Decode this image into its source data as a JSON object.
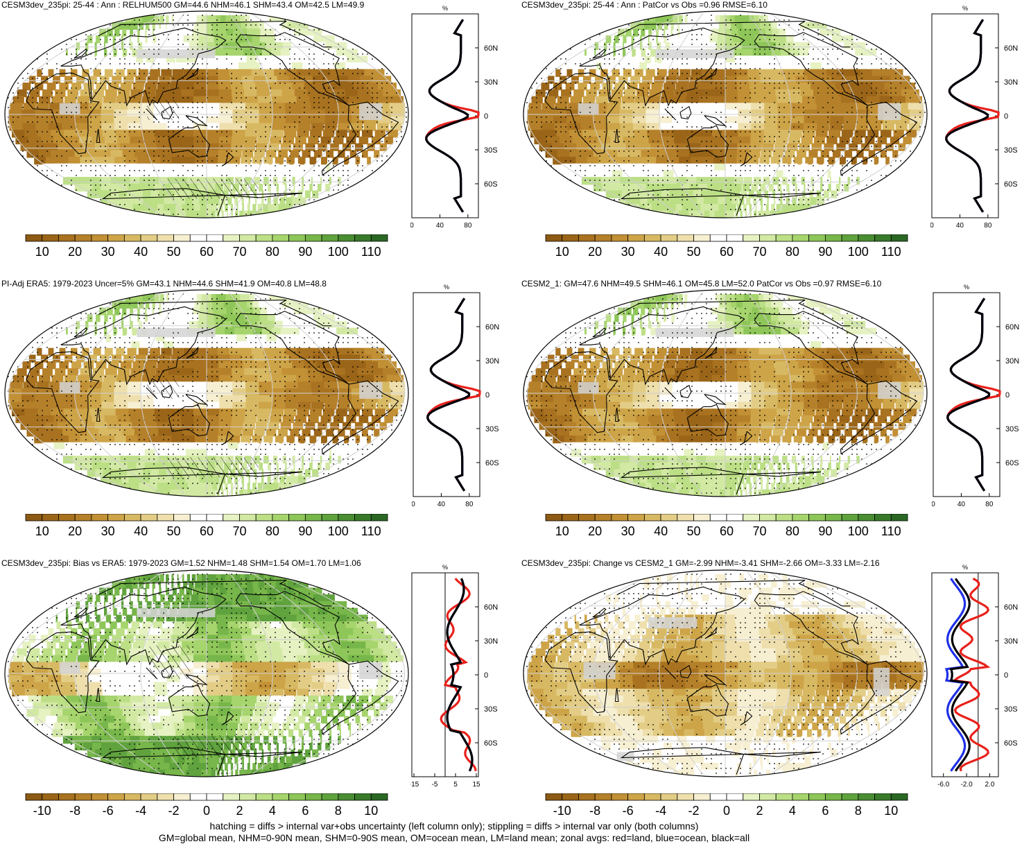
{
  "panels": [
    {
      "title": "CESM3dev_235pi: 25-44 : Ann : RELHUM500 GM=44.6 NHM=46.1 SHM=43.4 OM=42.5 LM=49.9",
      "field": "abs",
      "hatch": true,
      "zonal_axis": {
        "ticks": [
          "0",
          "40",
          "80"
        ],
        "tick_values": [
          0,
          40,
          80
        ],
        "xlim": [
          0,
          95
        ],
        "unit": "%",
        "zero_line": false
      },
      "lat_labels": [
        "60N",
        "30N",
        "0",
        "30S",
        "60S"
      ],
      "colorbar": {
        "labels": [
          "10",
          "20",
          "30",
          "40",
          "50",
          "60",
          "70",
          "80",
          "90",
          "100",
          "110"
        ]
      }
    },
    {
      "title": "CESM3dev_235pi: 25-44 : Ann : PatCor vs Obs =0.96 RMSE=6.10",
      "field": "abs",
      "hatch": false,
      "zonal_axis": {
        "ticks": [
          "0",
          "40",
          "80"
        ],
        "tick_values": [
          0,
          40,
          80
        ],
        "xlim": [
          0,
          95
        ],
        "unit": "%",
        "zero_line": false
      },
      "lat_labels": [
        "60N",
        "30N",
        "0",
        "30S",
        "60S"
      ],
      "colorbar": {
        "labels": [
          "10",
          "20",
          "30",
          "40",
          "50",
          "60",
          "70",
          "80",
          "90",
          "100",
          "110"
        ]
      }
    },
    {
      "title": "PI-Adj ERA5: 1979-2023 Uncer=5% GM=43.1 NHM=44.6 SHM=41.9 OM=40.8 LM=48.8",
      "field": "abs",
      "hatch": true,
      "zonal_axis": {
        "ticks": [
          "0",
          "40",
          "80"
        ],
        "tick_values": [
          0,
          40,
          80
        ],
        "xlim": [
          0,
          95
        ],
        "unit": "%",
        "zero_line": false
      },
      "lat_labels": [
        "60N",
        "30N",
        "0",
        "30S",
        "60S"
      ],
      "colorbar": {
        "labels": [
          "10",
          "20",
          "30",
          "40",
          "50",
          "60",
          "70",
          "80",
          "90",
          "100",
          "110"
        ]
      }
    },
    {
      "title": "CESM2_1: GM=47.6 NHM=49.5 SHM=46.1 OM=45.8 LM=52.0 PatCor vs Obs =0.97 RMSE=6.10",
      "field": "abs",
      "hatch": false,
      "zonal_axis": {
        "ticks": [
          "0",
          "40",
          "80"
        ],
        "tick_values": [
          0,
          40,
          80
        ],
        "xlim": [
          0,
          95
        ],
        "unit": "%",
        "zero_line": false
      },
      "lat_labels": [
        "60N",
        "30N",
        "0",
        "30S",
        "60S"
      ],
      "colorbar": {
        "labels": [
          "10",
          "20",
          "30",
          "40",
          "50",
          "60",
          "70",
          "80",
          "90",
          "100",
          "110"
        ]
      }
    },
    {
      "title": "CESM3dev_235pi: Bias vs ERA5: 1979-2023 GM=1.52 NHM=1.48 SHM=1.54 OM=1.70 LM=1.06",
      "field": "bias",
      "hatch": true,
      "zonal_axis": {
        "ticks": [
          "-15",
          "-5",
          "5",
          "15"
        ],
        "tick_values": [
          -15,
          -5,
          5,
          15
        ],
        "xlim": [
          -16,
          16
        ],
        "unit": "%",
        "zero_line": true
      },
      "lat_labels": [
        "60N",
        "30N",
        "0",
        "30S",
        "60S"
      ],
      "colorbar": {
        "labels": [
          "-10",
          "-8",
          "-6",
          "-4",
          "-2",
          "0",
          "2",
          "4",
          "6",
          "8",
          "10"
        ]
      }
    },
    {
      "title": "CESM3dev_235pi: Change vs CESM2_1 GM=-2.99 NHM=-3.41 SHM=-2.66 OM=-3.33 LM=-2.16",
      "field": "change",
      "hatch": false,
      "zonal_axis": {
        "ticks": [
          "-6.0",
          "-2.0",
          "2.0"
        ],
        "tick_values": [
          -6,
          -2,
          2
        ],
        "xlim": [
          -8,
          3.5
        ],
        "unit": "%",
        "zero_line": true
      },
      "lat_labels": [
        "60N",
        "30N",
        "0",
        "30S",
        "60S"
      ],
      "colorbar": {
        "labels": [
          "-10",
          "-8",
          "-6",
          "-4",
          "-2",
          "0",
          "2",
          "4",
          "6",
          "8",
          "10"
        ]
      }
    }
  ],
  "colors": {
    "abs_scale": [
      "#8c5a14",
      "#9a6518",
      "#a87220",
      "#b5802a",
      "#c29035",
      "#cda448",
      "#d8b963",
      "#e3cd86",
      "#eedfad",
      "#f7efd2",
      "#ffffff",
      "#ffffff",
      "#e6f2c2",
      "#d2e9a3",
      "#bcdf86",
      "#a6d46d",
      "#8ec659",
      "#77b64a",
      "#5fa23e",
      "#4a8d33",
      "#387a2a",
      "#2b6724"
    ],
    "diff_scale": [
      "#8c5a14",
      "#9a6518",
      "#a87220",
      "#b5802a",
      "#c29035",
      "#cda448",
      "#d8b963",
      "#e3cd86",
      "#eedfad",
      "#f7efd2",
      "#ffffff",
      "#ffffff",
      "#e6f2c2",
      "#d2e9a3",
      "#bcdf86",
      "#a6d46d",
      "#8ec659",
      "#77b64a",
      "#5fa23e",
      "#4a8d33",
      "#387a2a",
      "#2b6724"
    ],
    "missing": "#d3d3d3",
    "land_line": "#e8211a",
    "ocean_line": "#1f2fe6",
    "all_line": "#000000"
  },
  "footer": {
    "line1": "hatching = diffs > internal var+obs uncertainty (left column only); stippling = diffs > internal var only (both columns)",
    "line2": "GM=global mean, NHM=0-90N mean, SHM=0-90S mean, OM=ocean mean, LM=land mean; zonal avgs: red=land, blue=ocean, black=all"
  }
}
